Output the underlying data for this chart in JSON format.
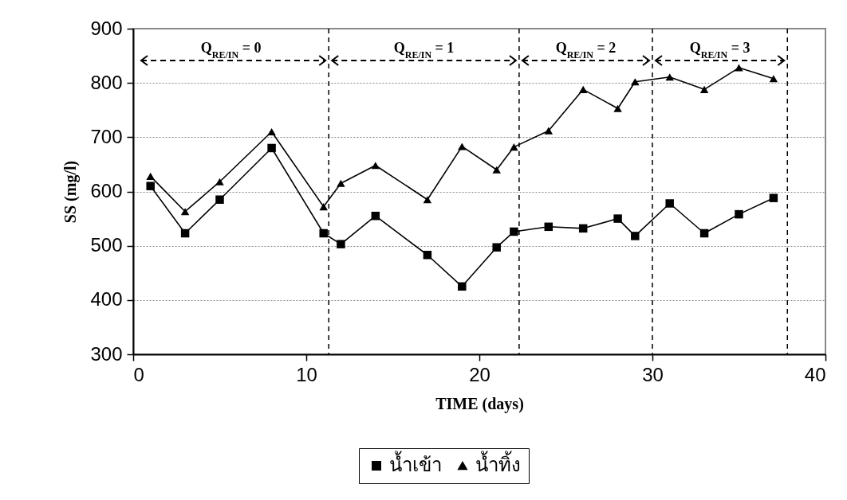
{
  "chart_data": {
    "type": "line",
    "xlabel": "TIME (days)",
    "ylabel": "SS (mg/l)",
    "x": [
      1,
      3,
      5,
      8,
      11,
      12,
      14,
      17,
      19,
      21,
      22,
      24,
      26,
      28,
      29,
      31,
      33,
      35,
      37
    ],
    "series": [
      {
        "name": "น้ำเข้า",
        "color": "#000000",
        "marker": "square",
        "values": [
          610,
          523,
          585,
          680,
          523,
          503,
          555,
          483,
          425,
          497,
          526,
          535,
          532,
          550,
          518,
          578,
          523,
          558,
          588
        ]
      },
      {
        "name": "น้ำทิ้ง",
        "color": "#000000",
        "marker": "triangle",
        "values": [
          628,
          563,
          618,
          710,
          572,
          615,
          648,
          585,
          683,
          640,
          682,
          712,
          788,
          753,
          802,
          811,
          788,
          828,
          808
        ]
      }
    ],
    "xlim": [
      0,
      40
    ],
    "xticks": [
      0,
      10,
      20,
      30,
      40
    ],
    "ylim": [
      300,
      900
    ],
    "yticks": [
      300,
      400,
      500,
      600,
      700,
      800,
      900
    ],
    "grid": "y",
    "legend": "bottom",
    "line_style": "solid",
    "ref_lines": [
      {
        "axis": "x",
        "value": 11.3,
        "line_style": "dashed"
      },
      {
        "axis": "x",
        "value": 22.3,
        "line_style": "dashed"
      },
      {
        "axis": "x",
        "value": 30,
        "line_style": "dashed"
      },
      {
        "axis": "x",
        "value": 37.8,
        "line_style": "dashed"
      }
    ],
    "annotations": [
      "Q$_{RE/IN}$ = 0",
      "Q$_{RE/IN}$ = 1",
      "Q$_{RE/IN}$ = 2",
      "Q$_{RE/IN}$ = 3"
    ]
  }
}
